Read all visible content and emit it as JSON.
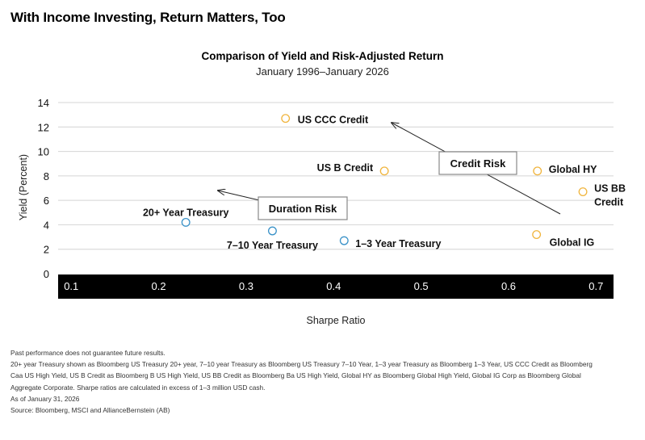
{
  "header": {
    "title": "With Income Investing, Return Matters, Too"
  },
  "chart_data": {
    "type": "scatter",
    "title": "Comparison of Yield and Risk-Adjusted Return",
    "subtitle": "January 1996–January 2026",
    "xlabel": "Sharpe Ratio",
    "ylabel": "Yield (Percent)",
    "xlim": [
      0.085,
      0.72
    ],
    "ylim": [
      0,
      14
    ],
    "xticks": [
      "0.1",
      "0.2",
      "0.3",
      "0.4",
      "0.5",
      "0.6",
      "0.7"
    ],
    "yticks": [
      "14",
      "12",
      "10",
      "8",
      "6",
      "4",
      "2",
      "0"
    ],
    "grid": true,
    "colors": {
      "treasury": "#3a92c8",
      "credit": "#f0b43c",
      "axis_band": "#000000"
    },
    "points": [
      {
        "label": "US CCC Credit",
        "x": 0.345,
        "y": 12.7,
        "group": "credit"
      },
      {
        "label": "US B Credit",
        "x": 0.458,
        "y": 8.4,
        "group": "credit"
      },
      {
        "label": "Global HY",
        "x": 0.633,
        "y": 8.4,
        "group": "credit"
      },
      {
        "label": "US BB Credit",
        "label_lines": [
          "US BB",
          "Credit"
        ],
        "x": 0.685,
        "y": 6.7,
        "group": "credit"
      },
      {
        "label": "Global IG",
        "x": 0.632,
        "y": 3.2,
        "group": "credit"
      },
      {
        "label": "20+ Year Treasury",
        "x": 0.231,
        "y": 4.2,
        "group": "treasury"
      },
      {
        "label": "7–10 Year Treasury",
        "x": 0.33,
        "y": 3.5,
        "group": "treasury"
      },
      {
        "label": "1–3 Year Treasury",
        "x": 0.412,
        "y": 2.7,
        "group": "treasury"
      }
    ],
    "annotations": [
      {
        "text": "Credit Risk"
      },
      {
        "text": "Duration Risk"
      }
    ]
  },
  "footnotes": [
    "Past performance does not guarantee future results.",
    "20+ year Treasury shown as Bloomberg US Treasury 20+ year, 7–10 year Treasury as Bloomberg US Treasury 7–10 Year, 1–3 year Treasury as Bloomberg 1–3 Year, US CCC Credit as Bloomberg",
    "Caa US High Yield, US B Credit as Bloomberg B US High Yield, US BB Credit as Bloomberg Ba US High Yield, Global HY as Bloomberg Global High Yield, Global IG Corp as Bloomberg Global",
    "Aggregate Corporate. Sharpe ratios are calculated in excess of 1–3 million USD cash.",
    "As of January 31, 2026",
    "Source: Bloomberg, MSCI and AllianceBernstein (AB)"
  ]
}
